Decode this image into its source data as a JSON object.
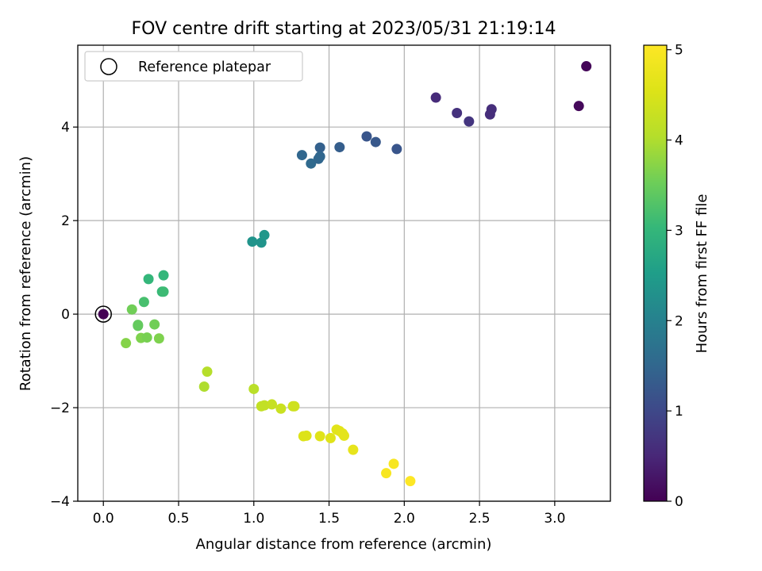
{
  "chart_data": {
    "type": "scatter",
    "title": "FOV centre drift starting at 2023/05/31 21:19:14",
    "xlabel": "Angular distance from reference (arcmin)",
    "ylabel": "Rotation from reference (arcmin)",
    "xlim": [
      -0.17,
      3.37
    ],
    "ylim": [
      -4.0,
      5.75
    ],
    "xticks": [
      "0.0",
      "0.5",
      "1.0",
      "1.5",
      "2.0",
      "2.5",
      "3.0"
    ],
    "yticks": [
      "−4",
      "−2",
      "0",
      "2",
      "4"
    ],
    "grid": true,
    "legend": {
      "position": "top-left",
      "entries": [
        "Reference platepar"
      ]
    },
    "reference_point": {
      "x": 0.0,
      "y": 0.0
    },
    "colorbar": {
      "label": "Hours from first FF file",
      "min": 0,
      "max": 5.05,
      "ticks": [
        "0",
        "1",
        "2",
        "3",
        "4",
        "5"
      ],
      "colormap": "viridis"
    },
    "points": [
      {
        "x": 0.0,
        "y": 0.0,
        "c": 0.0
      },
      {
        "x": 3.21,
        "y": 5.3,
        "c": 0.05
      },
      {
        "x": 3.16,
        "y": 4.45,
        "c": 0.1
      },
      {
        "x": 2.21,
        "y": 4.63,
        "c": 0.55
      },
      {
        "x": 2.35,
        "y": 4.3,
        "c": 0.65
      },
      {
        "x": 2.43,
        "y": 4.12,
        "c": 0.7
      },
      {
        "x": 2.57,
        "y": 4.27,
        "c": 0.6
      },
      {
        "x": 2.58,
        "y": 4.38,
        "c": 0.6
      },
      {
        "x": 1.75,
        "y": 3.8,
        "c": 1.2
      },
      {
        "x": 1.81,
        "y": 3.68,
        "c": 1.25
      },
      {
        "x": 1.95,
        "y": 3.53,
        "c": 1.2
      },
      {
        "x": 1.57,
        "y": 3.57,
        "c": 1.35
      },
      {
        "x": 1.44,
        "y": 3.56,
        "c": 1.4
      },
      {
        "x": 1.32,
        "y": 3.4,
        "c": 1.5
      },
      {
        "x": 1.38,
        "y": 3.22,
        "c": 1.55
      },
      {
        "x": 1.43,
        "y": 3.32,
        "c": 1.5
      },
      {
        "x": 1.44,
        "y": 3.37,
        "c": 1.5
      },
      {
        "x": 0.99,
        "y": 1.55,
        "c": 2.35
      },
      {
        "x": 1.05,
        "y": 1.53,
        "c": 2.35
      },
      {
        "x": 1.07,
        "y": 1.69,
        "c": 2.4
      },
      {
        "x": 0.4,
        "y": 0.83,
        "c": 3.0
      },
      {
        "x": 0.3,
        "y": 0.75,
        "c": 3.0
      },
      {
        "x": 0.39,
        "y": 0.48,
        "c": 3.05
      },
      {
        "x": 0.4,
        "y": 0.48,
        "c": 3.1
      },
      {
        "x": 0.27,
        "y": 0.26,
        "c": 3.2
      },
      {
        "x": 0.19,
        "y": 0.1,
        "c": 3.55
      },
      {
        "x": 0.23,
        "y": -0.23,
        "c": 3.45
      },
      {
        "x": 0.23,
        "y": -0.25,
        "c": 3.45
      },
      {
        "x": 0.34,
        "y": -0.22,
        "c": 3.55
      },
      {
        "x": 0.25,
        "y": -0.51,
        "c": 3.65
      },
      {
        "x": 0.29,
        "y": -0.5,
        "c": 3.6
      },
      {
        "x": 0.37,
        "y": -0.52,
        "c": 3.65
      },
      {
        "x": 0.15,
        "y": -0.62,
        "c": 3.7
      },
      {
        "x": 0.69,
        "y": -1.23,
        "c": 4.05
      },
      {
        "x": 0.67,
        "y": -1.55,
        "c": 4.0
      },
      {
        "x": 1.0,
        "y": -1.6,
        "c": 4.1
      },
      {
        "x": 1.05,
        "y": -1.97,
        "c": 4.2
      },
      {
        "x": 1.07,
        "y": -1.95,
        "c": 4.2
      },
      {
        "x": 1.12,
        "y": -1.93,
        "c": 4.25
      },
      {
        "x": 1.18,
        "y": -2.02,
        "c": 4.3
      },
      {
        "x": 1.26,
        "y": -1.97,
        "c": 4.35
      },
      {
        "x": 1.27,
        "y": -1.97,
        "c": 4.35
      },
      {
        "x": 1.33,
        "y": -2.61,
        "c": 4.55
      },
      {
        "x": 1.35,
        "y": -2.6,
        "c": 4.55
      },
      {
        "x": 1.44,
        "y": -2.61,
        "c": 4.6
      },
      {
        "x": 1.51,
        "y": -2.65,
        "c": 4.6
      },
      {
        "x": 1.55,
        "y": -2.47,
        "c": 4.62
      },
      {
        "x": 1.57,
        "y": -2.5,
        "c": 4.62
      },
      {
        "x": 1.59,
        "y": -2.55,
        "c": 4.65
      },
      {
        "x": 1.6,
        "y": -2.6,
        "c": 4.65
      },
      {
        "x": 1.66,
        "y": -2.9,
        "c": 4.7
      },
      {
        "x": 1.88,
        "y": -3.4,
        "c": 4.95
      },
      {
        "x": 1.93,
        "y": -3.2,
        "c": 4.95
      },
      {
        "x": 2.04,
        "y": -3.57,
        "c": 5.05
      }
    ]
  }
}
